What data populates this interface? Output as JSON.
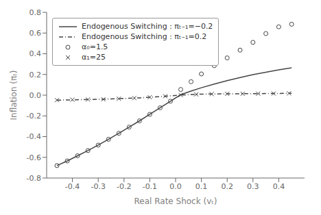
{
  "chart_data": {
    "type": "line",
    "title": "",
    "xlabel": "Real Rate Shock (vₜ)",
    "ylabel": "Inflation (πₜ)",
    "xlim": [
      -0.5,
      0.5
    ],
    "ylim": [
      -0.8,
      0.8
    ],
    "xticks": [
      -0.4,
      -0.3,
      -0.2,
      -0.1,
      {
        "value": 0.0,
        "label": "0.0"
      },
      0.1,
      0.2,
      0.3,
      0.4
    ],
    "yticks": [
      -0.8,
      -0.6,
      -0.4,
      -0.2,
      {
        "value": 0.0,
        "label": "0.0"
      },
      0.2,
      0.4,
      0.6,
      0.8
    ],
    "grid": false,
    "legend": "upper left",
    "series": [
      {
        "name": "Endogenous Switching : πₜ₋₁=−0.2",
        "type": "line",
        "line_style": "solid",
        "color": "#444444",
        "x": [
          -0.46,
          -0.42,
          -0.38,
          -0.34,
          -0.3,
          -0.26,
          -0.22,
          -0.18,
          -0.14,
          -0.1,
          -0.06,
          -0.02,
          0.02,
          0.06,
          0.1,
          0.15,
          0.2,
          0.25,
          0.3,
          0.35,
          0.4,
          0.45
        ],
        "values": [
          -0.68,
          -0.635,
          -0.585,
          -0.535,
          -0.482,
          -0.426,
          -0.368,
          -0.308,
          -0.248,
          -0.185,
          -0.122,
          -0.058,
          0.005,
          0.04,
          0.072,
          0.108,
          0.14,
          0.17,
          0.198,
          0.222,
          0.245,
          0.265
        ]
      },
      {
        "name": "Endogenous Switching : πₜ₋₁=0.2",
        "type": "line",
        "line_style": "dashdot",
        "color": "#444444",
        "x": [
          -0.46,
          -0.42,
          -0.38,
          -0.34,
          -0.3,
          -0.26,
          -0.22,
          -0.18,
          -0.14,
          -0.1,
          -0.06,
          -0.02,
          0.02,
          0.06,
          0.1,
          0.15,
          0.2,
          0.25,
          0.3,
          0.35,
          0.4,
          0.45
        ],
        "values": [
          -0.048,
          -0.046,
          -0.044,
          -0.042,
          -0.04,
          -0.037,
          -0.034,
          -0.03,
          -0.026,
          -0.02,
          -0.014,
          -0.007,
          0.001,
          0.006,
          0.01,
          0.012,
          0.013,
          0.014,
          0.015,
          0.016,
          0.017,
          0.018
        ]
      },
      {
        "name": "α₀=1.5",
        "type": "scatter",
        "marker": "circle",
        "color": "#444444",
        "x": [
          -0.46,
          -0.42,
          -0.38,
          -0.34,
          -0.3,
          -0.26,
          -0.22,
          -0.18,
          -0.14,
          -0.1,
          -0.06,
          -0.02,
          0.02,
          0.06,
          0.1,
          0.15,
          0.2,
          0.25,
          0.3,
          0.35,
          0.4,
          0.45
        ],
        "values": [
          -0.68,
          -0.635,
          -0.585,
          -0.535,
          -0.482,
          -0.426,
          -0.368,
          -0.308,
          -0.248,
          -0.185,
          -0.122,
          -0.058,
          0.055,
          0.13,
          0.205,
          0.285,
          0.36,
          0.435,
          0.51,
          0.595,
          0.66,
          0.685
        ]
      },
      {
        "name": "α₁=25",
        "type": "scatter",
        "marker": "x",
        "color": "#444444",
        "x": [
          -0.46,
          -0.4,
          -0.34,
          -0.28,
          -0.22,
          -0.16,
          -0.1,
          -0.04,
          0.02,
          0.08,
          0.14,
          0.2,
          0.26,
          0.32,
          0.38,
          0.44
        ],
        "values": [
          -0.048,
          -0.044,
          -0.042,
          -0.04,
          -0.034,
          -0.028,
          -0.02,
          -0.01,
          0.001,
          0.008,
          0.011,
          0.013,
          0.014,
          0.015,
          0.016,
          0.018
        ]
      }
    ]
  }
}
